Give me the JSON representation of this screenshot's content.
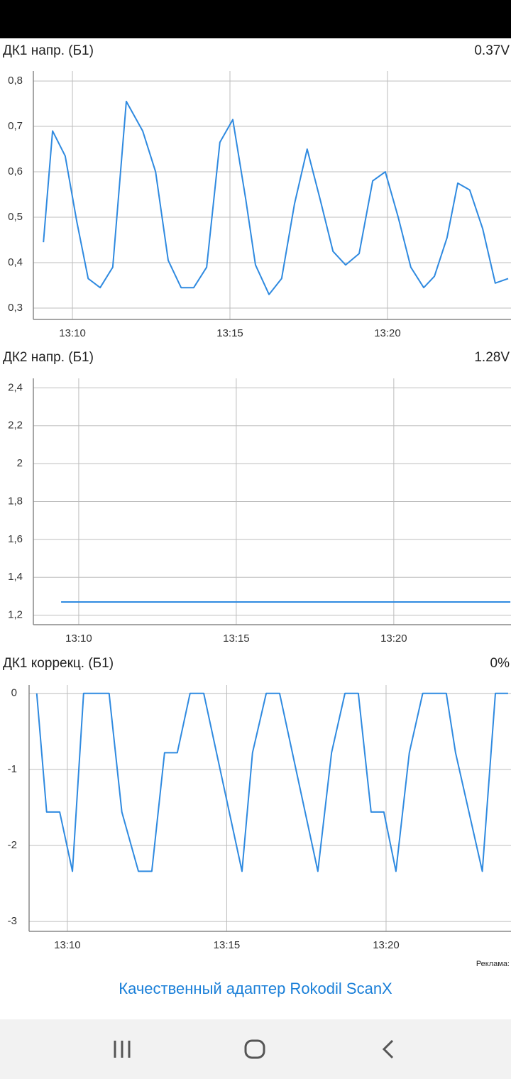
{
  "chart_data": [
    {
      "type": "line",
      "title": "ДК1 напр. (Б1)",
      "current_value": "0.37V",
      "color": "#2f8ae0",
      "grid": true,
      "x": [
        789.08,
        789.37,
        789.77,
        790.14,
        790.5,
        790.88,
        791.28,
        791.71,
        792.23,
        792.64,
        793.04,
        793.45,
        793.85,
        794.26,
        794.68,
        795.09,
        795.5,
        795.81,
        796.24,
        796.64,
        797.05,
        797.45,
        797.86,
        798.27,
        798.67,
        799.1,
        799.53,
        799.93,
        800.34,
        800.74,
        801.15,
        801.49,
        801.89,
        802.23,
        802.61,
        803.02,
        803.42,
        803.83
      ],
      "values": [
        0.445,
        0.69,
        0.635,
        0.49,
        0.365,
        0.345,
        0.39,
        0.755,
        0.69,
        0.6,
        0.405,
        0.345,
        0.345,
        0.39,
        0.665,
        0.715,
        0.54,
        0.395,
        0.33,
        0.365,
        0.53,
        0.65,
        0.54,
        0.425,
        0.395,
        0.42,
        0.58,
        0.6,
        0.5,
        0.39,
        0.345,
        0.37,
        0.455,
        0.575,
        0.56,
        0.475,
        0.355,
        0.365
      ],
      "xlim": [
        788.76,
        803.92
      ],
      "xticks": [
        {
          "value": 790,
          "label": "13:10"
        },
        {
          "value": 795,
          "label": "13:15"
        },
        {
          "value": 800,
          "label": "13:20"
        }
      ],
      "ylim": [
        0.275,
        0.822
      ],
      "yticks": [
        {
          "value": 0.3,
          "label": "0,3"
        },
        {
          "value": 0.4,
          "label": "0,4"
        },
        {
          "value": 0.5,
          "label": "0,5"
        },
        {
          "value": 0.6,
          "label": "0,6"
        },
        {
          "value": 0.7,
          "label": "0,7"
        },
        {
          "value": 0.8,
          "label": "0,8"
        }
      ]
    },
    {
      "type": "line",
      "title": "ДК2 напр. (Б1)",
      "current_value": "1.28V",
      "color": "#2f8ae0",
      "grid": true,
      "x": [
        789.44,
        803.7
      ],
      "values": [
        1.27,
        1.27
      ],
      "xlim": [
        788.56,
        803.72
      ],
      "xticks": [
        {
          "value": 790,
          "label": "13:10"
        },
        {
          "value": 795,
          "label": "13:15"
        },
        {
          "value": 800,
          "label": "13:20"
        }
      ],
      "ylim": [
        1.15,
        2.45
      ],
      "yticks": [
        {
          "value": 1.2,
          "label": "1,2"
        },
        {
          "value": 1.4,
          "label": "1,4"
        },
        {
          "value": 1.6,
          "label": "1,6"
        },
        {
          "value": 1.8,
          "label": "1,8"
        },
        2,
        {
          "value": 2.2,
          "label": "2,2"
        },
        {
          "value": 2.4,
          "label": "2,4"
        }
      ]
    },
    {
      "type": "line",
      "title": "ДК1 коррекц. (Б1)",
      "current_value": "0%",
      "color": "#2f8ae0",
      "grid": true,
      "x": [
        789.04,
        789.35,
        789.76,
        790.16,
        790.51,
        791.31,
        791.71,
        792.23,
        792.65,
        793.05,
        793.45,
        793.85,
        794.28,
        795.48,
        795.81,
        796.24,
        796.66,
        797.86,
        798.29,
        798.71,
        799.13,
        799.53,
        799.93,
        800.31,
        800.73,
        801.15,
        801.89,
        802.18,
        803.02,
        803.43,
        803.83
      ],
      "values": [
        0,
        -1.56,
        -1.56,
        -2.34,
        0,
        0,
        -1.56,
        -2.34,
        -2.34,
        -0.78,
        -0.78,
        0,
        0,
        -2.34,
        -0.78,
        0,
        0,
        -2.34,
        -0.78,
        0,
        0,
        -1.56,
        -1.56,
        -2.34,
        -0.78,
        0,
        0,
        -0.78,
        -2.34,
        0,
        0
      ],
      "xlim": [
        788.8,
        803.92
      ],
      "xticks": [
        {
          "value": 790,
          "label": "13:10"
        },
        {
          "value": 795,
          "label": "13:15"
        },
        {
          "value": 800,
          "label": "13:20"
        }
      ],
      "ylim": [
        -3.13,
        0.11
      ],
      "yticks": [
        -3,
        -2,
        -1,
        0
      ]
    }
  ],
  "ad": {
    "label": "Реклама:",
    "link": "Качественный адаптер Rokodil ScanX"
  }
}
